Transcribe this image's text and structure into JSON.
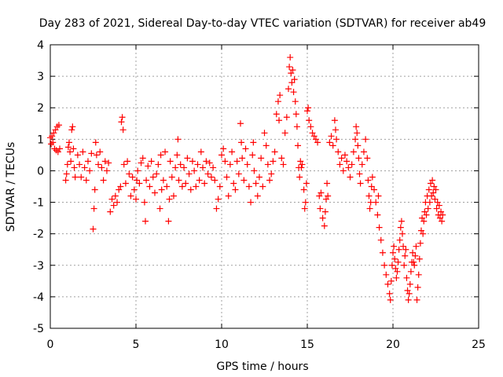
{
  "chart_data": {
    "type": "scatter",
    "title": "Day 283 of 2021, Sidereal Day-to-day VTEC variation (SDTVAR) for receiver ab49",
    "xlabel": "GPS time / hours",
    "ylabel": "SDTVAR / TECUs",
    "xlim": [
      0,
      25
    ],
    "ylim": [
      -5,
      4
    ],
    "xticks": [
      0,
      5,
      10,
      15,
      20,
      25
    ],
    "yticks": [
      -5,
      -4,
      -3,
      -2,
      -1,
      0,
      1,
      2,
      3,
      4
    ],
    "grid": true,
    "marker": "+",
    "color": "#ff0000",
    "series": [
      {
        "name": "SDTVAR",
        "points": [
          [
            0.0,
            1.05
          ],
          [
            0.05,
            0.85
          ],
          [
            0.1,
            1.1
          ],
          [
            0.15,
            0.9
          ],
          [
            0.2,
            1.2
          ],
          [
            0.25,
            0.7
          ],
          [
            0.3,
            1.3
          ],
          [
            0.35,
            0.65
          ],
          [
            0.4,
            1.4
          ],
          [
            0.45,
            0.6
          ],
          [
            0.5,
            1.45
          ],
          [
            0.55,
            0.7
          ],
          [
            0.9,
            -0.3
          ],
          [
            0.95,
            -0.1
          ],
          [
            1.0,
            0.2
          ],
          [
            1.05,
            0.75
          ],
          [
            1.1,
            0.9
          ],
          [
            1.15,
            0.6
          ],
          [
            1.2,
            0.3
          ],
          [
            1.25,
            1.3
          ],
          [
            1.3,
            1.4
          ],
          [
            1.35,
            0.7
          ],
          [
            1.4,
            0.1
          ],
          [
            1.45,
            -0.2
          ],
          [
            1.6,
            0.5
          ],
          [
            1.7,
            0.2
          ],
          [
            1.8,
            -0.2
          ],
          [
            1.9,
            0.6
          ],
          [
            2.0,
            0.1
          ],
          [
            2.1,
            -0.3
          ],
          [
            2.2,
            0.3
          ],
          [
            2.3,
            0.0
          ],
          [
            2.4,
            0.55
          ],
          [
            2.5,
            -1.85
          ],
          [
            2.55,
            -1.2
          ],
          [
            2.6,
            -0.6
          ],
          [
            2.65,
            0.9
          ],
          [
            2.7,
            0.5
          ],
          [
            2.8,
            0.2
          ],
          [
            2.9,
            0.6
          ],
          [
            3.0,
            0.1
          ],
          [
            3.1,
            -0.3
          ],
          [
            3.2,
            0.3
          ],
          [
            3.3,
            0.0
          ],
          [
            3.4,
            0.25
          ],
          [
            3.5,
            -1.3
          ],
          [
            3.6,
            -0.9
          ],
          [
            3.7,
            -1.1
          ],
          [
            3.8,
            -0.8
          ],
          [
            3.9,
            -1.0
          ],
          [
            4.0,
            -0.6
          ],
          [
            4.1,
            -0.5
          ],
          [
            4.15,
            1.55
          ],
          [
            4.2,
            1.7
          ],
          [
            4.25,
            1.3
          ],
          [
            4.3,
            0.2
          ],
          [
            4.4,
            -0.4
          ],
          [
            4.5,
            0.3
          ],
          [
            4.6,
            -0.1
          ],
          [
            4.7,
            -0.8
          ],
          [
            4.8,
            -0.2
          ],
          [
            4.9,
            -0.6
          ],
          [
            5.0,
            -0.9
          ],
          [
            5.05,
            -0.3
          ],
          [
            5.1,
            0.0
          ],
          [
            5.2,
            -0.4
          ],
          [
            5.3,
            0.25
          ],
          [
            5.4,
            0.4
          ],
          [
            5.5,
            -1.0
          ],
          [
            5.55,
            -1.6
          ],
          [
            5.6,
            -0.3
          ],
          [
            5.7,
            0.15
          ],
          [
            5.8,
            -0.5
          ],
          [
            5.9,
            0.3
          ],
          [
            6.0,
            -0.2
          ],
          [
            6.1,
            -0.7
          ],
          [
            6.2,
            -0.1
          ],
          [
            6.3,
            0.2
          ],
          [
            6.4,
            -1.2
          ],
          [
            6.45,
            0.5
          ],
          [
            6.5,
            -0.6
          ],
          [
            6.6,
            -0.3
          ],
          [
            6.7,
            0.6
          ],
          [
            6.8,
            -0.5
          ],
          [
            6.9,
            -1.6
          ],
          [
            6.95,
            -0.9
          ],
          [
            7.0,
            0.3
          ],
          [
            7.1,
            -0.2
          ],
          [
            7.2,
            -0.8
          ],
          [
            7.3,
            0.1
          ],
          [
            7.4,
            0.5
          ],
          [
            7.45,
            1.0
          ],
          [
            7.5,
            -0.3
          ],
          [
            7.6,
            0.2
          ],
          [
            7.7,
            -0.5
          ],
          [
            7.8,
            0.1
          ],
          [
            7.9,
            -0.4
          ],
          [
            8.0,
            0.4
          ],
          [
            8.1,
            -0.1
          ],
          [
            8.2,
            -0.6
          ],
          [
            8.3,
            0.3
          ],
          [
            8.4,
            0.0
          ],
          [
            8.5,
            -0.5
          ],
          [
            8.6,
            0.2
          ],
          [
            8.7,
            -0.3
          ],
          [
            8.8,
            0.6
          ],
          [
            8.9,
            0.1
          ],
          [
            9.0,
            -0.4
          ],
          [
            9.1,
            0.3
          ],
          [
            9.2,
            -0.1
          ],
          [
            9.3,
            0.25
          ],
          [
            9.4,
            -0.2
          ],
          [
            9.5,
            0.1
          ],
          [
            9.6,
            -0.3
          ],
          [
            9.7,
            -1.2
          ],
          [
            9.8,
            -0.9
          ],
          [
            9.9,
            -0.5
          ],
          [
            10.0,
            0.5
          ],
          [
            10.1,
            0.7
          ],
          [
            10.2,
            0.3
          ],
          [
            10.3,
            -0.2
          ],
          [
            10.4,
            -0.8
          ],
          [
            10.5,
            0.2
          ],
          [
            10.6,
            0.6
          ],
          [
            10.7,
            -0.4
          ],
          [
            10.8,
            -0.6
          ],
          [
            10.9,
            0.3
          ],
          [
            11.0,
            -0.1
          ],
          [
            11.1,
            1.5
          ],
          [
            11.15,
            0.9
          ],
          [
            11.2,
            0.4
          ],
          [
            11.3,
            -0.3
          ],
          [
            11.4,
            0.7
          ],
          [
            11.5,
            0.2
          ],
          [
            11.6,
            -0.5
          ],
          [
            11.7,
            -1.0
          ],
          [
            11.8,
            0.5
          ],
          [
            11.85,
            0.9
          ],
          [
            11.9,
            0.0
          ],
          [
            12.0,
            -0.4
          ],
          [
            12.1,
            -0.8
          ],
          [
            12.2,
            -0.2
          ],
          [
            12.3,
            0.4
          ],
          [
            12.4,
            -0.5
          ],
          [
            12.5,
            1.2
          ],
          [
            12.6,
            0.8
          ],
          [
            12.7,
            0.2
          ],
          [
            12.8,
            -0.3
          ],
          [
            12.9,
            -0.1
          ],
          [
            13.0,
            0.3
          ],
          [
            13.1,
            0.6
          ],
          [
            13.2,
            1.8
          ],
          [
            13.3,
            2.2
          ],
          [
            13.35,
            1.6
          ],
          [
            13.4,
            2.4
          ],
          [
            13.5,
            0.4
          ],
          [
            13.6,
            0.2
          ],
          [
            13.7,
            1.2
          ],
          [
            13.8,
            1.7
          ],
          [
            13.9,
            2.6
          ],
          [
            13.95,
            3.3
          ],
          [
            14.0,
            3.6
          ],
          [
            14.05,
            3.1
          ],
          [
            14.1,
            2.8
          ],
          [
            14.15,
            3.2
          ],
          [
            14.2,
            2.5
          ],
          [
            14.25,
            2.9
          ],
          [
            14.3,
            2.2
          ],
          [
            14.35,
            1.8
          ],
          [
            14.4,
            1.4
          ],
          [
            14.45,
            0.8
          ],
          [
            14.5,
            0.1
          ],
          [
            14.55,
            -0.2
          ],
          [
            14.6,
            0.3
          ],
          [
            14.65,
            0.1
          ],
          [
            14.7,
            0.2
          ],
          [
            14.8,
            -0.6
          ],
          [
            14.85,
            -1.2
          ],
          [
            14.9,
            -1.0
          ],
          [
            14.95,
            -0.4
          ],
          [
            15.0,
            1.9
          ],
          [
            15.05,
            2.0
          ],
          [
            15.1,
            1.6
          ],
          [
            15.2,
            1.4
          ],
          [
            15.3,
            1.2
          ],
          [
            15.4,
            1.1
          ],
          [
            15.5,
            1.0
          ],
          [
            15.6,
            0.9
          ],
          [
            15.7,
            -0.8
          ],
          [
            15.75,
            -1.2
          ],
          [
            15.8,
            -0.7
          ],
          [
            15.9,
            -1.5
          ],
          [
            16.0,
            -1.75
          ],
          [
            16.05,
            -1.3
          ],
          [
            16.1,
            -0.9
          ],
          [
            16.15,
            -0.4
          ],
          [
            16.2,
            -0.8
          ],
          [
            16.3,
            0.9
          ],
          [
            16.4,
            1.1
          ],
          [
            16.5,
            0.8
          ],
          [
            16.6,
            1.6
          ],
          [
            16.65,
            1.3
          ],
          [
            16.7,
            1.0
          ],
          [
            16.8,
            0.6
          ],
          [
            16.9,
            0.2
          ],
          [
            17.0,
            0.4
          ],
          [
            17.1,
            0.0
          ],
          [
            17.2,
            0.5
          ],
          [
            17.3,
            0.3
          ],
          [
            17.4,
            0.1
          ],
          [
            17.5,
            -0.2
          ],
          [
            17.6,
            0.2
          ],
          [
            17.7,
            0.6
          ],
          [
            17.8,
            1.0
          ],
          [
            17.85,
            1.4
          ],
          [
            17.9,
            1.2
          ],
          [
            17.95,
            0.8
          ],
          [
            18.0,
            0.4
          ],
          [
            18.05,
            -0.1
          ],
          [
            18.1,
            -0.4
          ],
          [
            18.2,
            0.2
          ],
          [
            18.3,
            0.6
          ],
          [
            18.4,
            1.0
          ],
          [
            18.5,
            0.4
          ],
          [
            18.55,
            -0.3
          ],
          [
            18.6,
            -0.8
          ],
          [
            18.65,
            -1.2
          ],
          [
            18.7,
            -1.0
          ],
          [
            18.75,
            -0.5
          ],
          [
            18.8,
            -0.2
          ],
          [
            18.9,
            -0.6
          ],
          [
            19.0,
            -1.0
          ],
          [
            19.1,
            -1.4
          ],
          [
            19.15,
            -0.8
          ],
          [
            19.2,
            -1.8
          ],
          [
            19.3,
            -2.2
          ],
          [
            19.4,
            -2.6
          ],
          [
            19.5,
            -3.0
          ],
          [
            19.6,
            -3.3
          ],
          [
            19.7,
            -3.6
          ],
          [
            19.8,
            -3.9
          ],
          [
            19.85,
            -4.1
          ],
          [
            19.9,
            -3.5
          ],
          [
            19.95,
            -3.0
          ],
          [
            20.0,
            -2.6
          ],
          [
            20.05,
            -2.4
          ],
          [
            20.1,
            -2.8
          ],
          [
            20.15,
            -3.1
          ],
          [
            20.2,
            -3.4
          ],
          [
            20.25,
            -3.2
          ],
          [
            20.3,
            -2.9
          ],
          [
            20.35,
            -2.5
          ],
          [
            20.4,
            -2.2
          ],
          [
            20.45,
            -1.8
          ],
          [
            20.5,
            -1.6
          ],
          [
            20.55,
            -2.0
          ],
          [
            20.6,
            -2.4
          ],
          [
            20.65,
            -3.0
          ],
          [
            20.7,
            -2.7
          ],
          [
            20.75,
            -2.5
          ],
          [
            20.8,
            -3.4
          ],
          [
            20.85,
            -3.8
          ],
          [
            20.9,
            -4.1
          ],
          [
            20.95,
            -3.9
          ],
          [
            21.0,
            -3.6
          ],
          [
            21.05,
            -3.2
          ],
          [
            21.1,
            -2.9
          ],
          [
            21.15,
            -2.6
          ],
          [
            21.2,
            -2.9
          ],
          [
            21.25,
            -3.0
          ],
          [
            21.3,
            -2.7
          ],
          [
            21.35,
            -2.4
          ],
          [
            21.4,
            -4.1
          ],
          [
            21.45,
            -3.7
          ],
          [
            21.5,
            -3.3
          ],
          [
            21.55,
            -2.8
          ],
          [
            21.6,
            -2.3
          ],
          [
            21.65,
            -1.9
          ],
          [
            21.7,
            -1.5
          ],
          [
            21.75,
            -2.0
          ],
          [
            21.8,
            -1.6
          ],
          [
            21.85,
            -1.3
          ],
          [
            21.9,
            -1.0
          ],
          [
            21.95,
            -1.4
          ],
          [
            22.0,
            -0.8
          ],
          [
            22.05,
            -1.2
          ],
          [
            22.1,
            -0.6
          ],
          [
            22.15,
            -1.0
          ],
          [
            22.2,
            -0.4
          ],
          [
            22.25,
            -0.8
          ],
          [
            22.3,
            -0.3
          ],
          [
            22.35,
            -0.7
          ],
          [
            22.4,
            -0.5
          ],
          [
            22.45,
            -0.9
          ],
          [
            22.5,
            -0.6
          ],
          [
            22.55,
            -1.2
          ],
          [
            22.6,
            -1.0
          ],
          [
            22.65,
            -1.4
          ],
          [
            22.7,
            -1.1
          ],
          [
            22.75,
            -1.5
          ],
          [
            22.8,
            -1.3
          ],
          [
            22.85,
            -1.6
          ],
          [
            22.9,
            -1.4
          ]
        ]
      }
    ]
  }
}
